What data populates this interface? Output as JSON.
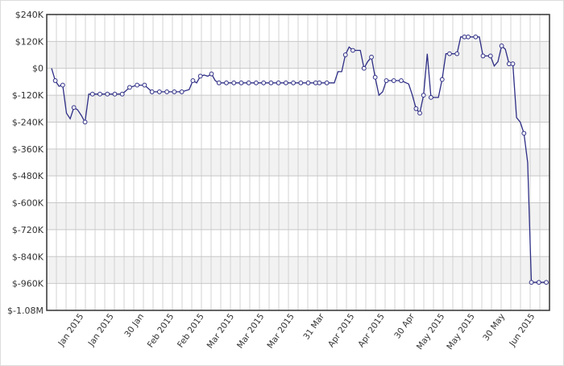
{
  "chart_data": {
    "type": "line",
    "title": "",
    "xlabel": "",
    "ylabel": "",
    "ylim": [
      -1080000,
      240000
    ],
    "grid": true,
    "legend": "none",
    "colors": {
      "line": "#2e2e86",
      "marker_fill": "#ffffff",
      "band": "#f2f2f2",
      "grid": "#c8c8c8",
      "axis": "#333333"
    },
    "y_ticks": [
      {
        "value": 240000,
        "label": "$240K"
      },
      {
        "value": 120000,
        "label": "$120K"
      },
      {
        "value": 0,
        "label": "$0"
      },
      {
        "value": -120000,
        "label": "$-120K"
      },
      {
        "value": -240000,
        "label": "$-240K"
      },
      {
        "value": -360000,
        "label": "$-360K"
      },
      {
        "value": -480000,
        "label": "$-480K"
      },
      {
        "value": -600000,
        "label": "$-600K"
      },
      {
        "value": -720000,
        "label": "$-720K"
      },
      {
        "value": -840000,
        "label": "$-840K"
      },
      {
        "value": -960000,
        "label": "$-960K"
      },
      {
        "value": -1080000,
        "label": "$-1.08M"
      }
    ],
    "x_ticks": [
      {
        "label": "Jan 2015"
      },
      {
        "label": "Jan 2015"
      },
      {
        "label": "30 Jan"
      },
      {
        "label": "Feb 2015"
      },
      {
        "label": "Feb 2015"
      },
      {
        "label": "Mar 2015"
      },
      {
        "label": "Mar 2015"
      },
      {
        "label": "Mar 2015"
      },
      {
        "label": "31 Mar"
      },
      {
        "label": "Apr 2015"
      },
      {
        "label": "Apr 2015"
      },
      {
        "label": "30 Apr"
      },
      {
        "label": "May 2015"
      },
      {
        "label": "May 2015"
      },
      {
        "label": "30 May"
      },
      {
        "label": "Jun 2015"
      }
    ],
    "series": [
      {
        "points": [
          {
            "x": 0,
            "y": 0,
            "m": false
          },
          {
            "x": 1,
            "y": -55000,
            "m": true
          },
          {
            "x": 2,
            "y": -80000,
            "m": false
          },
          {
            "x": 3,
            "y": -75000,
            "m": true
          },
          {
            "x": 4,
            "y": -200000,
            "m": false
          },
          {
            "x": 5,
            "y": -225000,
            "m": false
          },
          {
            "x": 6,
            "y": -175000,
            "m": true
          },
          {
            "x": 7,
            "y": -185000,
            "m": false
          },
          {
            "x": 8,
            "y": -210000,
            "m": false
          },
          {
            "x": 9,
            "y": -240000,
            "m": true
          },
          {
            "x": 10,
            "y": -115000,
            "m": false
          },
          {
            "x": 11,
            "y": -115000,
            "m": true
          },
          {
            "x": 13,
            "y": -115000,
            "m": true
          },
          {
            "x": 15,
            "y": -115000,
            "m": true
          },
          {
            "x": 17,
            "y": -115000,
            "m": true
          },
          {
            "x": 19,
            "y": -115000,
            "m": true
          },
          {
            "x": 21,
            "y": -85000,
            "m": true
          },
          {
            "x": 23,
            "y": -75000,
            "m": true
          },
          {
            "x": 25,
            "y": -75000,
            "m": true
          },
          {
            "x": 27,
            "y": -105000,
            "m": true
          },
          {
            "x": 29,
            "y": -105000,
            "m": true
          },
          {
            "x": 31,
            "y": -105000,
            "m": true
          },
          {
            "x": 33,
            "y": -105000,
            "m": true
          },
          {
            "x": 35,
            "y": -105000,
            "m": true
          },
          {
            "x": 37,
            "y": -95000,
            "m": false
          },
          {
            "x": 38,
            "y": -55000,
            "m": true
          },
          {
            "x": 39,
            "y": -65000,
            "m": false
          },
          {
            "x": 40,
            "y": -35000,
            "m": true
          },
          {
            "x": 41,
            "y": -30000,
            "m": false
          },
          {
            "x": 42,
            "y": -35000,
            "m": false
          },
          {
            "x": 43,
            "y": -25000,
            "m": true
          },
          {
            "x": 44,
            "y": -55000,
            "m": false
          },
          {
            "x": 45,
            "y": -65000,
            "m": true
          },
          {
            "x": 47,
            "y": -65000,
            "m": true
          },
          {
            "x": 49,
            "y": -65000,
            "m": true
          },
          {
            "x": 51,
            "y": -65000,
            "m": true
          },
          {
            "x": 53,
            "y": -65000,
            "m": true
          },
          {
            "x": 55,
            "y": -65000,
            "m": true
          },
          {
            "x": 57,
            "y": -65000,
            "m": true
          },
          {
            "x": 59,
            "y": -65000,
            "m": true
          },
          {
            "x": 61,
            "y": -65000,
            "m": true
          },
          {
            "x": 63,
            "y": -65000,
            "m": true
          },
          {
            "x": 65,
            "y": -65000,
            "m": true
          },
          {
            "x": 67,
            "y": -65000,
            "m": true
          },
          {
            "x": 69,
            "y": -65000,
            "m": true
          },
          {
            "x": 71,
            "y": -65000,
            "m": true
          },
          {
            "x": 72,
            "y": -65000,
            "m": true
          },
          {
            "x": 74,
            "y": -65000,
            "m": true
          },
          {
            "x": 76,
            "y": -65000,
            "m": false
          },
          {
            "x": 77,
            "y": -15000,
            "m": false
          },
          {
            "x": 78,
            "y": -15000,
            "m": false
          },
          {
            "x": 79,
            "y": 60000,
            "m": true
          },
          {
            "x": 80,
            "y": 95000,
            "m": false
          },
          {
            "x": 81,
            "y": 80000,
            "m": true
          },
          {
            "x": 82,
            "y": 80000,
            "m": false
          },
          {
            "x": 83,
            "y": 80000,
            "m": false
          },
          {
            "x": 84,
            "y": 0,
            "m": true
          },
          {
            "x": 85,
            "y": 30000,
            "m": false
          },
          {
            "x": 86,
            "y": 50000,
            "m": true
          },
          {
            "x": 87,
            "y": -40000,
            "m": true
          },
          {
            "x": 88,
            "y": -120000,
            "m": false
          },
          {
            "x": 89,
            "y": -105000,
            "m": false
          },
          {
            "x": 90,
            "y": -55000,
            "m": true
          },
          {
            "x": 92,
            "y": -55000,
            "m": true
          },
          {
            "x": 94,
            "y": -55000,
            "m": true
          },
          {
            "x": 96,
            "y": -70000,
            "m": false
          },
          {
            "x": 97,
            "y": -120000,
            "m": false
          },
          {
            "x": 98,
            "y": -180000,
            "m": true
          },
          {
            "x": 99,
            "y": -200000,
            "m": true
          },
          {
            "x": 100,
            "y": -120000,
            "m": true
          },
          {
            "x": 101,
            "y": 65000,
            "m": false
          },
          {
            "x": 102,
            "y": -130000,
            "m": true
          },
          {
            "x": 104,
            "y": -130000,
            "m": false
          },
          {
            "x": 105,
            "y": -50000,
            "m": true
          },
          {
            "x": 106,
            "y": 65000,
            "m": false
          },
          {
            "x": 107,
            "y": 65000,
            "m": true
          },
          {
            "x": 109,
            "y": 65000,
            "m": true
          },
          {
            "x": 110,
            "y": 140000,
            "m": false
          },
          {
            "x": 111,
            "y": 140000,
            "m": true
          },
          {
            "x": 112,
            "y": 140000,
            "m": true
          },
          {
            "x": 114,
            "y": 140000,
            "m": true
          },
          {
            "x": 115,
            "y": 140000,
            "m": false
          },
          {
            "x": 116,
            "y": 55000,
            "m": true
          },
          {
            "x": 118,
            "y": 55000,
            "m": true
          },
          {
            "x": 119,
            "y": 10000,
            "m": false
          },
          {
            "x": 120,
            "y": 30000,
            "m": false
          },
          {
            "x": 121,
            "y": 100000,
            "m": true
          },
          {
            "x": 122,
            "y": 85000,
            "m": false
          },
          {
            "x": 123,
            "y": 20000,
            "m": true
          },
          {
            "x": 124,
            "y": 20000,
            "m": true
          },
          {
            "x": 125,
            "y": -220000,
            "m": false
          },
          {
            "x": 126,
            "y": -240000,
            "m": false
          },
          {
            "x": 127,
            "y": -290000,
            "m": true
          },
          {
            "x": 128,
            "y": -420000,
            "m": false
          },
          {
            "x": 129,
            "y": -955000,
            "m": true
          },
          {
            "x": 131,
            "y": -955000,
            "m": true
          },
          {
            "x": 133,
            "y": -955000,
            "m": true
          }
        ]
      }
    ]
  }
}
